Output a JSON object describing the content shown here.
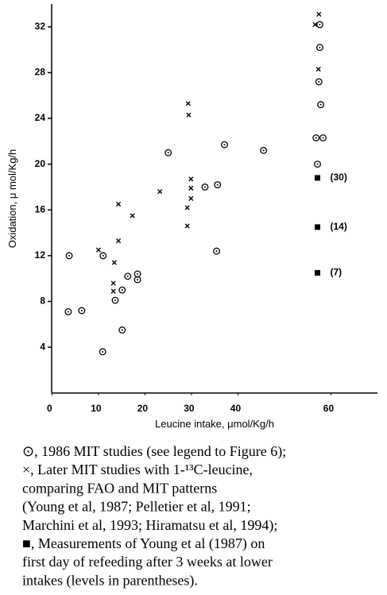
{
  "chart_data": {
    "type": "scatter",
    "x_label": "Leucine intake, μmol/Kg/h",
    "y_label": "Oxidation, μ mol/Kg/h",
    "xlim": [
      0,
      70
    ],
    "xticks": [
      0,
      10,
      20,
      30,
      40,
      60
    ],
    "ylim": [
      0,
      34
    ],
    "yticks": [
      4,
      8,
      12,
      16,
      20,
      24,
      28,
      32
    ],
    "series": [
      {
        "marker": "circle",
        "color": "#000000",
        "x": [
          3.7,
          11.0,
          3.5,
          6.4,
          10.9,
          13.6,
          15.1,
          16.3,
          18.4,
          18.4,
          15.1,
          25.0,
          32.9,
          35.6,
          35.4,
          37.1,
          45.5,
          57.6,
          57.6,
          57.4,
          57.8,
          56.8,
          58.3,
          57.1
        ],
        "values": [
          12.0,
          12.0,
          7.1,
          7.2,
          3.6,
          8.1,
          9.0,
          10.2,
          10.4,
          9.9,
          5.5,
          21.0,
          18.0,
          18.2,
          12.4,
          21.7,
          21.2,
          32.2,
          30.2,
          27.2,
          25.2,
          22.3,
          22.3,
          20.0
        ]
      },
      {
        "marker": "cross",
        "color": "#000000",
        "x": [
          10.0,
          14.3,
          14.3,
          13.4,
          13.2,
          13.2,
          17.3,
          23.2,
          29.3,
          29.4,
          29.9,
          29.9,
          29.9,
          29.1,
          29.1,
          57.4,
          56.6,
          57.3
        ],
        "values": [
          12.5,
          16.5,
          13.3,
          11.4,
          9.6,
          8.9,
          15.5,
          17.6,
          25.3,
          24.3,
          18.7,
          17.9,
          17.0,
          16.2,
          14.6,
          33.1,
          32.2,
          28.3
        ]
      },
      {
        "marker": "square",
        "color": "#000000",
        "x": [
          57.1,
          57.1,
          57.1
        ],
        "values": [
          18.8,
          14.5,
          10.5
        ],
        "point_labels": [
          "(30)",
          "(14)",
          "(7)"
        ]
      }
    ]
  },
  "caption": [
    "⊙, 1986 MIT studies (see legend to Figure 6);",
    "×, Later MIT studies with 1-¹³C-leucine,",
    "comparing FAO and MIT patterns",
    "(Young et al, 1987; Pelletier et al, 1991;",
    "Marchini et al, 1993; Hiramatsu et al, 1994);",
    "■, Measurements of Young et al (1987) on",
    "first day of refeeding after 3 weeks at lower",
    "intakes (levels in parentheses)."
  ]
}
